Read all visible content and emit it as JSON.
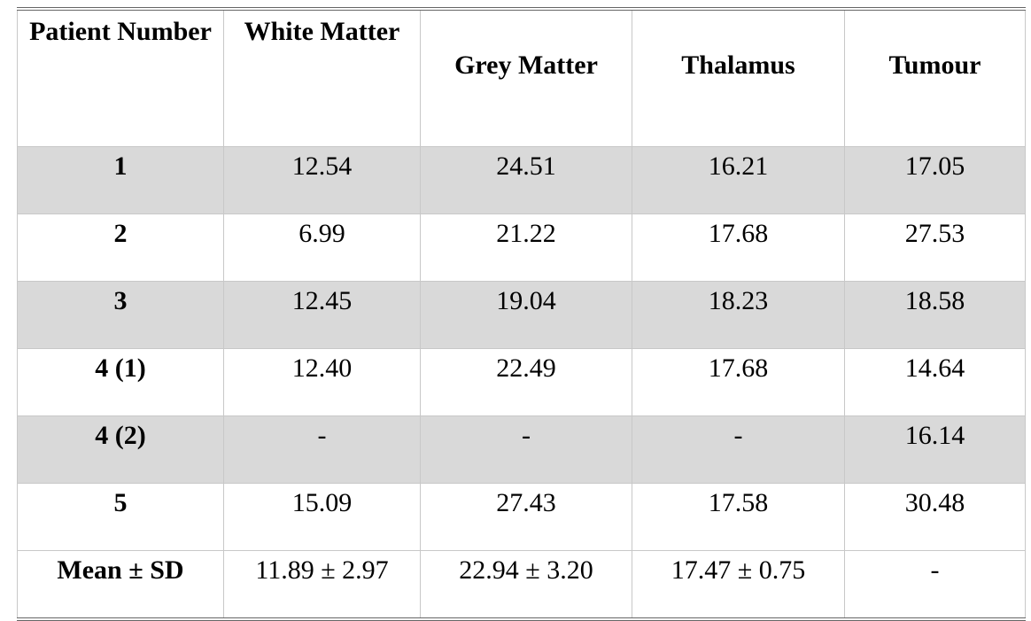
{
  "table": {
    "header": [
      "Patient Number",
      "White Matter",
      "Grey Matter",
      "Thalamus",
      "Tumour"
    ],
    "rows": [
      [
        "1",
        "12.54",
        "24.51",
        "16.21",
        "17.05"
      ],
      [
        "2",
        "6.99",
        "21.22",
        "17.68",
        "27.53"
      ],
      [
        "3",
        "12.45",
        "19.04",
        "18.23",
        "18.58"
      ],
      [
        "4 (1)",
        "12.40",
        "22.49",
        "17.68",
        "14.64"
      ],
      [
        "4 (2)",
        "-",
        "-",
        "-",
        "16.14"
      ],
      [
        "5",
        "15.09",
        "27.43",
        "17.58",
        "30.48"
      ],
      [
        "Mean ± SD",
        "11.89 ± 2.97",
        "22.94 ± 3.20",
        "17.47 ± 0.75",
        "-"
      ]
    ]
  }
}
